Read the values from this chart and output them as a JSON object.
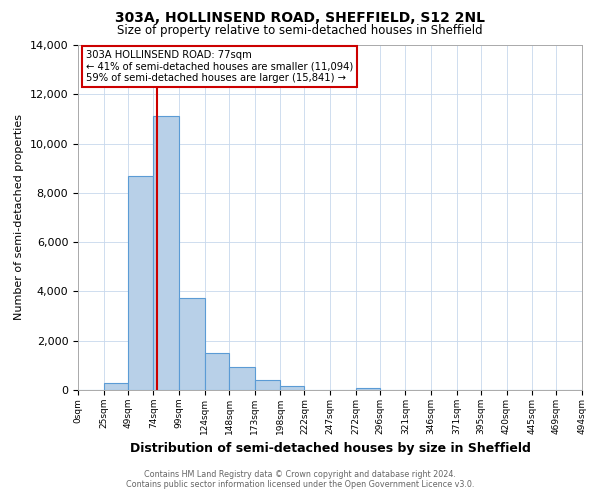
{
  "title": "303A, HOLLINSEND ROAD, SHEFFIELD, S12 2NL",
  "subtitle": "Size of property relative to semi-detached houses in Sheffield",
  "xlabel": "Distribution of semi-detached houses by size in Sheffield",
  "ylabel": "Number of semi-detached properties",
  "bar_edges": [
    0,
    25,
    49,
    74,
    99,
    124,
    148,
    173,
    198,
    222,
    247,
    272,
    296,
    321,
    346,
    371,
    395,
    420,
    445,
    469,
    494
  ],
  "bar_heights": [
    0,
    300,
    8700,
    11100,
    3750,
    1500,
    950,
    400,
    150,
    0,
    0,
    100,
    0,
    0,
    0,
    0,
    0,
    0,
    0,
    0
  ],
  "bar_color": "#b8d0e8",
  "bar_edgecolor": "#5b9bd5",
  "property_size": 77,
  "vline_color": "#cc0000",
  "annotation_title": "303A HOLLINSEND ROAD: 77sqm",
  "annotation_line1": "← 41% of semi-detached houses are smaller (11,094)",
  "annotation_line2": "59% of semi-detached houses are larger (15,841) →",
  "annotation_box_edgecolor": "#cc0000",
  "ylim": [
    0,
    14000
  ],
  "yticks": [
    0,
    2000,
    4000,
    6000,
    8000,
    10000,
    12000,
    14000
  ],
  "xtick_labels": [
    "0sqm",
    "25sqm",
    "49sqm",
    "74sqm",
    "99sqm",
    "124sqm",
    "148sqm",
    "173sqm",
    "198sqm",
    "222sqm",
    "247sqm",
    "272sqm",
    "296sqm",
    "321sqm",
    "346sqm",
    "371sqm",
    "395sqm",
    "420sqm",
    "445sqm",
    "469sqm",
    "494sqm"
  ],
  "footer_line1": "Contains HM Land Registry data © Crown copyright and database right 2024.",
  "footer_line2": "Contains public sector information licensed under the Open Government Licence v3.0.",
  "background_color": "#ffffff",
  "grid_color": "#c8d8ec"
}
